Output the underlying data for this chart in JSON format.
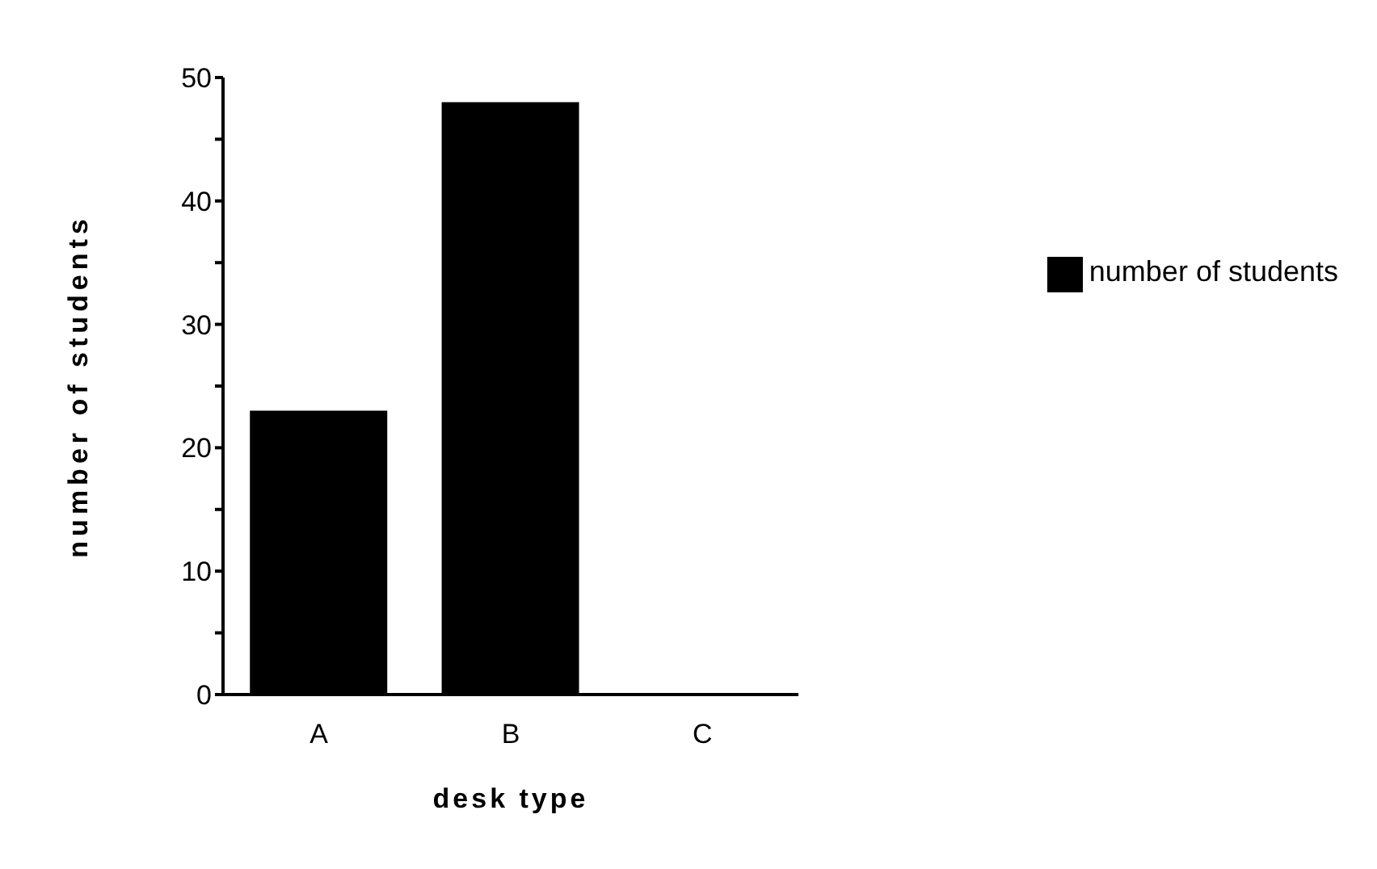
{
  "chart_data": {
    "type": "bar",
    "xlabel": "desk type",
    "ylabel": "number of students",
    "categories": [
      "A",
      "B",
      "C"
    ],
    "series": [
      {
        "name": "number of students",
        "color": "#000000",
        "values": [
          23,
          48,
          0
        ]
      }
    ],
    "ylim": [
      0,
      50
    ],
    "yticks": [
      0,
      {
        "value": 5,
        "label": null
      },
      10,
      {
        "value": 15,
        "label": null
      },
      20,
      {
        "value": 25,
        "label": null
      },
      30,
      {
        "value": 35,
        "label": null
      },
      40,
      {
        "value": 45,
        "label": null
      },
      50
    ],
    "grid": false,
    "legend": "right"
  }
}
